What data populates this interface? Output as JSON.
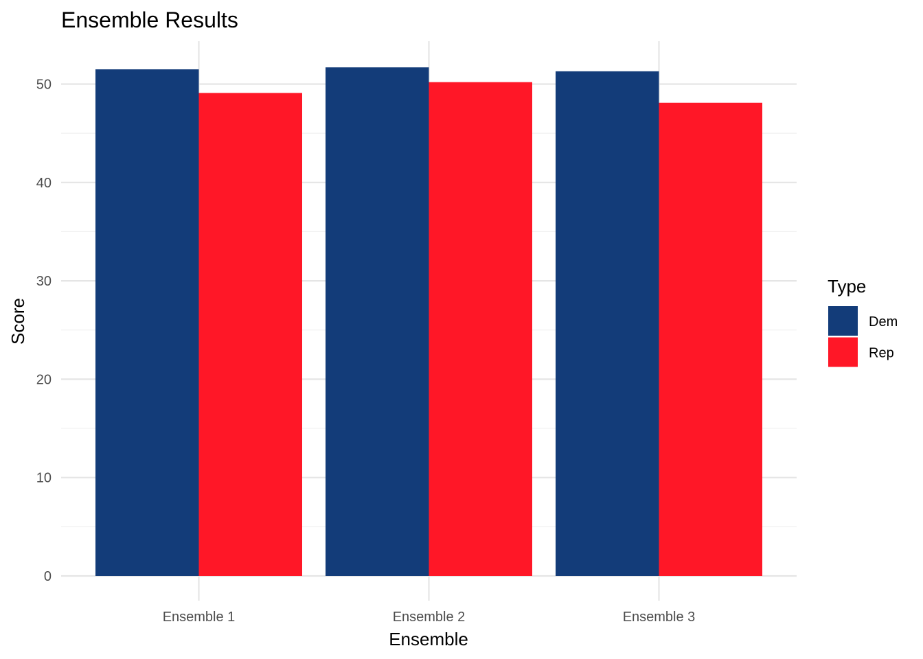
{
  "chart_data": {
    "type": "bar",
    "title": "Ensemble Results",
    "xlabel": "Ensemble",
    "ylabel": "Score",
    "categories": [
      "Ensemble 1",
      "Ensemble 2",
      "Ensemble 3"
    ],
    "series": [
      {
        "name": "Dem",
        "color": "#133C79",
        "values": [
          51.5,
          51.7,
          51.3
        ]
      },
      {
        "name": "Rep",
        "color": "#FF1727",
        "values": [
          49.1,
          50.2,
          48.1
        ]
      }
    ],
    "ylim": [
      0,
      54
    ],
    "yticks": [
      0,
      10,
      20,
      30,
      40,
      50
    ],
    "grid": true,
    "legend": {
      "title": "Type",
      "position": "right"
    }
  }
}
